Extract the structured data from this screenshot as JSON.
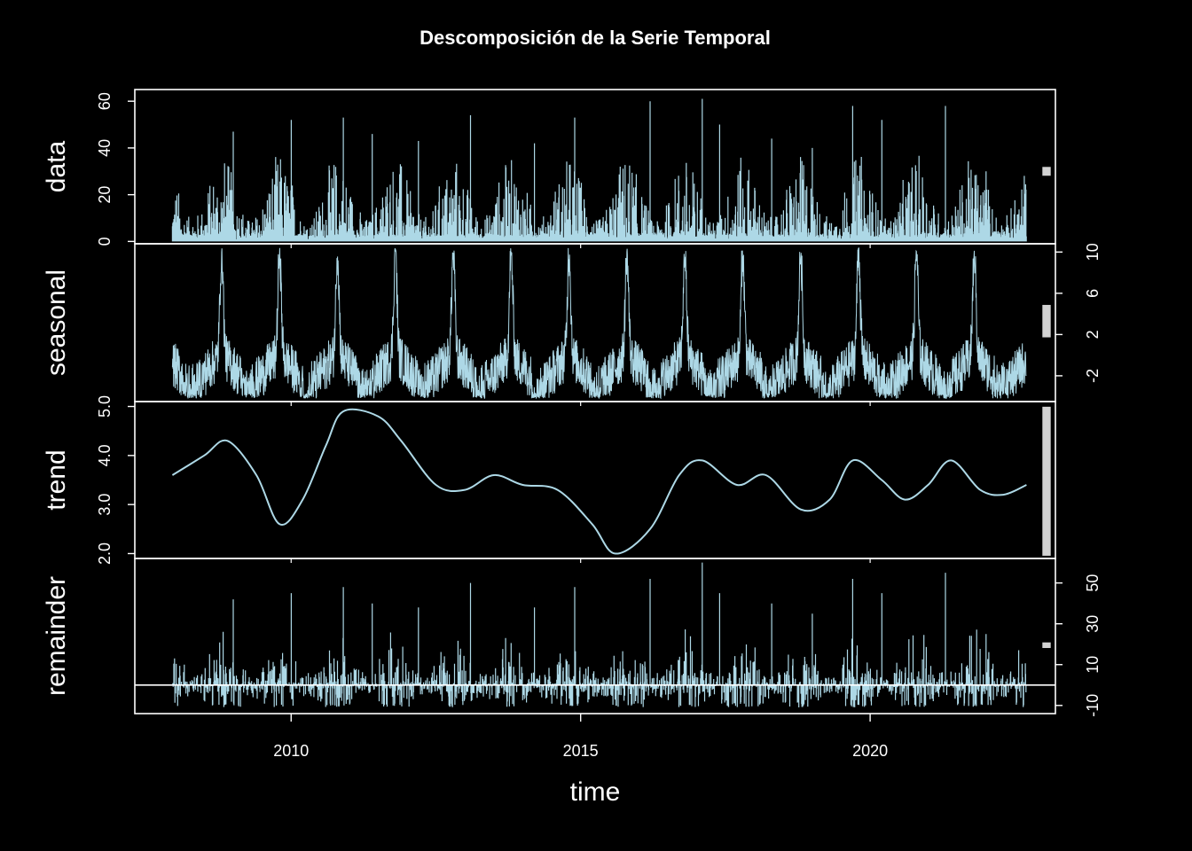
{
  "chart_data": {
    "type": "line",
    "title": "Descomposición de la Serie Temporal",
    "xlabel": "time",
    "xlim": [
      2007.3,
      2023.2
    ],
    "x_ticks": [
      "2010",
      "2015",
      "2020"
    ],
    "x_tick_values": [
      2010,
      2015,
      2020
    ],
    "x_range": [
      2007.95,
      2022.7
    ],
    "colors": {
      "background": "#000000",
      "series": "#add8e6",
      "axes": "#ffffff",
      "range_bar": "#d3d3d3"
    },
    "panels": [
      {
        "name": "data",
        "ylim": [
          -1,
          65
        ],
        "ticks": [
          "0",
          "20",
          "40",
          "60"
        ],
        "tick_values": [
          0,
          20,
          40,
          60
        ],
        "tick_side": "left",
        "range_bar": [
          28,
          32
        ],
        "baseline": 0,
        "spikes": [
          [
            2009.0,
            47
          ],
          [
            2010.0,
            52
          ],
          [
            2010.9,
            53
          ],
          [
            2011.4,
            46
          ],
          [
            2012.2,
            43
          ],
          [
            2013.1,
            54
          ],
          [
            2014.2,
            42
          ],
          [
            2014.9,
            53
          ],
          [
            2016.2,
            60
          ],
          [
            2017.1,
            61
          ],
          [
            2017.4,
            50
          ],
          [
            2018.3,
            44
          ],
          [
            2019.0,
            40
          ],
          [
            2019.7,
            58
          ],
          [
            2020.2,
            52
          ],
          [
            2021.3,
            58
          ],
          [
            2022.0,
            30
          ]
        ]
      },
      {
        "name": "seasonal",
        "ylim": [
          -4.5,
          10.8
        ],
        "ticks": [
          "-2",
          "2",
          "6",
          "10"
        ],
        "tick_values": [
          -2,
          2,
          6,
          10
        ],
        "tick_side": "right",
        "range_bar": [
          1.7,
          4.9
        ],
        "peak": 10.5,
        "trough": -4.2,
        "peak_years": [
          2008.8,
          2009.8,
          2010.8,
          2011.8,
          2012.8,
          2013.8,
          2014.8,
          2015.8,
          2016.8,
          2017.8,
          2018.8,
          2019.8,
          2020.8,
          2021.8
        ]
      },
      {
        "name": "trend",
        "ylim": [
          1.9,
          5.1
        ],
        "ticks": [
          "2.0",
          "3.0",
          "4.0",
          "5.0"
        ],
        "tick_values": [
          2.0,
          3.0,
          4.0,
          5.0
        ],
        "tick_side": "left",
        "range_bar": [
          1.95,
          5.0
        ],
        "values": [
          [
            2007.95,
            3.6
          ],
          [
            2008.5,
            4.0
          ],
          [
            2008.9,
            4.3
          ],
          [
            2009.4,
            3.6
          ],
          [
            2009.8,
            2.6
          ],
          [
            2010.2,
            3.1
          ],
          [
            2010.6,
            4.2
          ],
          [
            2010.9,
            4.9
          ],
          [
            2011.5,
            4.8
          ],
          [
            2011.9,
            4.3
          ],
          [
            2012.5,
            3.4
          ],
          [
            2013.0,
            3.3
          ],
          [
            2013.5,
            3.6
          ],
          [
            2014.0,
            3.4
          ],
          [
            2014.6,
            3.3
          ],
          [
            2015.2,
            2.6
          ],
          [
            2015.6,
            2.0
          ],
          [
            2016.2,
            2.5
          ],
          [
            2016.7,
            3.6
          ],
          [
            2017.1,
            3.9
          ],
          [
            2017.7,
            3.4
          ],
          [
            2018.2,
            3.6
          ],
          [
            2018.8,
            2.9
          ],
          [
            2019.3,
            3.1
          ],
          [
            2019.7,
            3.9
          ],
          [
            2020.2,
            3.5
          ],
          [
            2020.6,
            3.1
          ],
          [
            2021.0,
            3.4
          ],
          [
            2021.4,
            3.9
          ],
          [
            2021.9,
            3.3
          ],
          [
            2022.3,
            3.2
          ],
          [
            2022.7,
            3.4
          ]
        ]
      },
      {
        "name": "remainder",
        "ylim": [
          -14,
          62
        ],
        "ticks": [
          "-10",
          "10",
          "30",
          "50"
        ],
        "tick_values": [
          -10,
          10,
          30,
          50
        ],
        "tick_side": "right",
        "range_bar": [
          18,
          21
        ],
        "baseline": 0,
        "spikes": [
          [
            2009.0,
            42
          ],
          [
            2010.0,
            45
          ],
          [
            2010.9,
            48
          ],
          [
            2011.4,
            40
          ],
          [
            2012.2,
            38
          ],
          [
            2013.1,
            50
          ],
          [
            2014.2,
            38
          ],
          [
            2014.9,
            48
          ],
          [
            2016.2,
            52
          ],
          [
            2017.1,
            60
          ],
          [
            2017.4,
            45
          ],
          [
            2018.3,
            40
          ],
          [
            2019.0,
            35
          ],
          [
            2019.7,
            52
          ],
          [
            2020.2,
            45
          ],
          [
            2021.3,
            55
          ],
          [
            2022.0,
            25
          ]
        ]
      }
    ]
  }
}
